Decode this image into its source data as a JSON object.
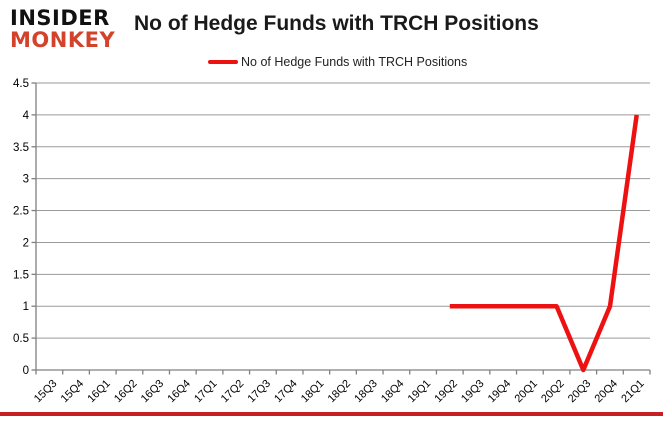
{
  "page": {
    "background": "#ffffff"
  },
  "header": {
    "logo_line1": "INSIDER",
    "logo_line2": "MONKEY",
    "logo_line1_color": "#111111",
    "logo_line2_color": "#d3432b",
    "title": "No of Hedge Funds with TRCH Positions"
  },
  "legend": {
    "label": "No of Hedge Funds with TRCH Positions",
    "swatch_color": "#ee1111"
  },
  "footer": {
    "bar_color": "#c62026"
  },
  "chart_data": {
    "type": "line",
    "title": "No of Hedge Funds with TRCH Positions",
    "categories": [
      "15Q3",
      "15Q4",
      "16Q1",
      "16Q2",
      "16Q3",
      "16Q4",
      "17Q1",
      "17Q2",
      "17Q3",
      "17Q4",
      "18Q1",
      "18Q2",
      "18Q3",
      "18Q4",
      "19Q1",
      "19Q2",
      "19Q3",
      "19Q4",
      "20Q1",
      "20Q2",
      "20Q3",
      "20Q4",
      "21Q1"
    ],
    "series": [
      {
        "name": "No of Hedge Funds with TRCH Positions",
        "color": "#ee1111",
        "values": [
          null,
          null,
          null,
          null,
          null,
          null,
          null,
          null,
          null,
          null,
          null,
          null,
          null,
          null,
          null,
          1,
          1,
          1,
          1,
          1,
          0,
          1,
          4
        ]
      }
    ],
    "xlabel": "",
    "ylabel": "",
    "ylim": [
      0,
      4.5
    ],
    "yticks": [
      0,
      0.5,
      1,
      1.5,
      2,
      2.5,
      3,
      3.5,
      4,
      4.5
    ],
    "grid": true,
    "legend_position": "top",
    "axis_color": "#808080",
    "grid_color": "#9a9a9a",
    "tick_label_color": "#000000"
  }
}
